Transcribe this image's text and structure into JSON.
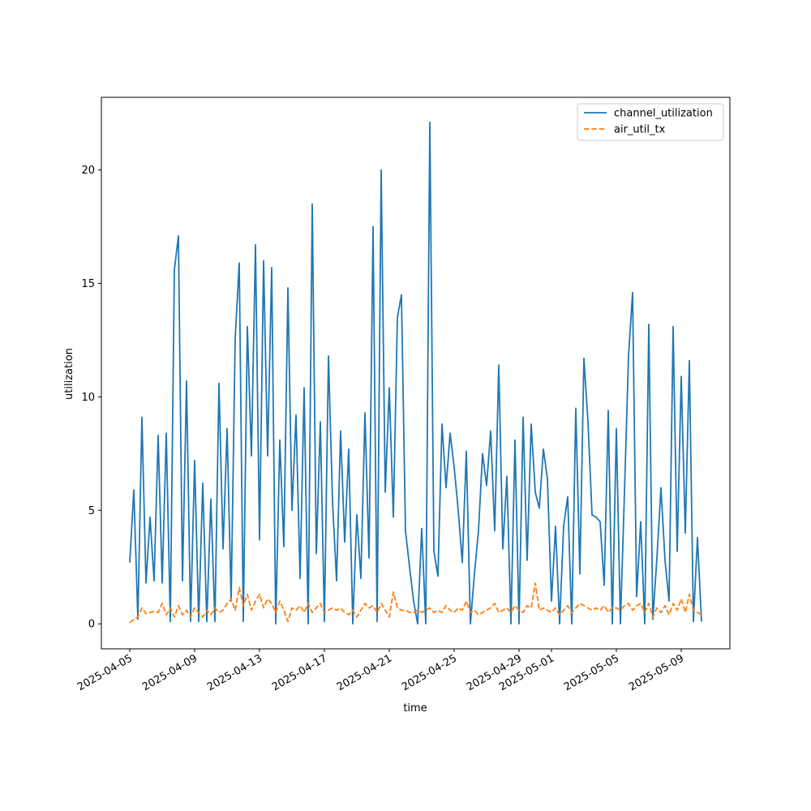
{
  "chart_data": {
    "type": "line",
    "xlabel": "time",
    "ylabel": "utilization",
    "x": [
      "2025-04-05 00:00",
      "2025-04-05 06:00",
      "2025-04-05 12:00",
      "2025-04-05 18:00",
      "2025-04-06 00:00",
      "2025-04-06 06:00",
      "2025-04-06 12:00",
      "2025-04-06 18:00",
      "2025-04-07 00:00",
      "2025-04-07 06:00",
      "2025-04-07 12:00",
      "2025-04-07 18:00",
      "2025-04-08 00:00",
      "2025-04-08 06:00",
      "2025-04-08 12:00",
      "2025-04-08 18:00",
      "2025-04-09 00:00",
      "2025-04-09 06:00",
      "2025-04-09 12:00",
      "2025-04-09 18:00",
      "2025-04-10 00:00",
      "2025-04-10 06:00",
      "2025-04-10 12:00",
      "2025-04-10 18:00",
      "2025-04-11 00:00",
      "2025-04-11 06:00",
      "2025-04-11 12:00",
      "2025-04-11 18:00",
      "2025-04-12 00:00",
      "2025-04-12 06:00",
      "2025-04-12 12:00",
      "2025-04-12 18:00",
      "2025-04-13 00:00",
      "2025-04-13 06:00",
      "2025-04-13 12:00",
      "2025-04-13 18:00",
      "2025-04-14 00:00",
      "2025-04-14 06:00",
      "2025-04-14 12:00",
      "2025-04-14 18:00",
      "2025-04-15 00:00",
      "2025-04-15 06:00",
      "2025-04-15 12:00",
      "2025-04-15 18:00",
      "2025-04-16 00:00",
      "2025-04-16 06:00",
      "2025-04-16 12:00",
      "2025-04-16 18:00",
      "2025-04-17 00:00",
      "2025-04-17 06:00",
      "2025-04-17 12:00",
      "2025-04-17 18:00",
      "2025-04-18 00:00",
      "2025-04-18 06:00",
      "2025-04-18 12:00",
      "2025-04-18 18:00",
      "2025-04-19 00:00",
      "2025-04-19 06:00",
      "2025-04-19 12:00",
      "2025-04-19 18:00",
      "2025-04-20 00:00",
      "2025-04-20 06:00",
      "2025-04-20 12:00",
      "2025-04-20 18:00",
      "2025-04-21 00:00",
      "2025-04-21 06:00",
      "2025-04-21 12:00",
      "2025-04-21 18:00",
      "2025-04-22 00:00",
      "2025-04-22 06:00",
      "2025-04-22 12:00",
      "2025-04-22 18:00",
      "2025-04-23 00:00",
      "2025-04-23 06:00",
      "2025-04-23 12:00",
      "2025-04-23 18:00",
      "2025-04-24 00:00",
      "2025-04-24 06:00",
      "2025-04-24 12:00",
      "2025-04-24 18:00",
      "2025-04-25 00:00",
      "2025-04-25 06:00",
      "2025-04-25 12:00",
      "2025-04-25 18:00",
      "2025-04-26 00:00",
      "2025-04-26 06:00",
      "2025-04-26 12:00",
      "2025-04-26 18:00",
      "2025-04-27 00:00",
      "2025-04-27 06:00",
      "2025-04-27 12:00",
      "2025-04-27 18:00",
      "2025-04-28 00:00",
      "2025-04-28 06:00",
      "2025-04-28 12:00",
      "2025-04-28 18:00",
      "2025-04-29 00:00",
      "2025-04-29 06:00",
      "2025-04-29 12:00",
      "2025-04-29 18:00",
      "2025-04-30 00:00",
      "2025-04-30 06:00",
      "2025-04-30 12:00",
      "2025-04-30 18:00",
      "2025-05-01 00:00",
      "2025-05-01 06:00",
      "2025-05-01 12:00",
      "2025-05-01 18:00",
      "2025-05-02 00:00",
      "2025-05-02 06:00",
      "2025-05-02 12:00",
      "2025-05-02 18:00",
      "2025-05-03 00:00",
      "2025-05-03 06:00",
      "2025-05-03 12:00",
      "2025-05-03 18:00",
      "2025-05-04 00:00",
      "2025-05-04 06:00",
      "2025-05-04 12:00",
      "2025-05-04 18:00",
      "2025-05-05 00:00",
      "2025-05-05 06:00",
      "2025-05-05 12:00",
      "2025-05-05 18:00",
      "2025-05-06 00:00",
      "2025-05-06 06:00",
      "2025-05-06 12:00",
      "2025-05-06 18:00",
      "2025-05-07 00:00",
      "2025-05-07 06:00",
      "2025-05-07 12:00",
      "2025-05-07 18:00",
      "2025-05-08 00:00",
      "2025-05-08 06:00",
      "2025-05-08 12:00",
      "2025-05-08 18:00",
      "2025-05-09 00:00",
      "2025-05-09 06:00",
      "2025-05-09 12:00",
      "2025-05-09 18:00",
      "2025-05-10 00:00",
      "2025-05-10 06:00"
    ],
    "series": [
      {
        "name": "channel_utilization",
        "color": "#1f77b4",
        "dash": false,
        "values": [
          2.7,
          5.9,
          0.2,
          9.1,
          1.8,
          4.7,
          1.9,
          8.3,
          1.8,
          8.4,
          0.1,
          15.6,
          17.1,
          1.9,
          10.7,
          0.1,
          7.2,
          0.1,
          6.2,
          0.1,
          5.5,
          0.1,
          10.6,
          3.3,
          8.6,
          1.0,
          12.6,
          15.9,
          0.1,
          13.1,
          7.4,
          16.7,
          3.7,
          16.0,
          7.4,
          15.7,
          0.0,
          8.1,
          3.4,
          14.8,
          5.0,
          9.2,
          2.0,
          10.4,
          0.0,
          18.5,
          3.1,
          8.9,
          0.1,
          11.8,
          5.4,
          1.9,
          8.5,
          3.6,
          7.7,
          0.0,
          4.8,
          2.0,
          9.3,
          2.9,
          17.5,
          0.1,
          20.0,
          5.8,
          10.4,
          4.7,
          13.5,
          14.5,
          4.1,
          2.5,
          1.0,
          0.0,
          4.2,
          0.0,
          22.1,
          3.2,
          2.1,
          8.8,
          6.0,
          8.4,
          6.9,
          5.0,
          2.7,
          7.6,
          0.0,
          2.2,
          4.1,
          7.5,
          6.1,
          8.5,
          4.1,
          11.4,
          3.3,
          6.5,
          0.0,
          8.1,
          0.0,
          9.1,
          2.8,
          8.8,
          5.8,
          5.1,
          7.7,
          6.4,
          1.0,
          4.3,
          0.0,
          4.3,
          5.6,
          0.0,
          9.5,
          2.2,
          11.7,
          8.9,
          4.8,
          4.7,
          4.5,
          1.7,
          9.4,
          0.0,
          8.6,
          0.0,
          5.8,
          11.8,
          14.6,
          1.2,
          4.5,
          0.0,
          13.2,
          0.2,
          2.9,
          6.0,
          2.8,
          1.0,
          13.1,
          3.2,
          10.9,
          4.0,
          11.6,
          0.1,
          3.8,
          0.1
        ]
      },
      {
        "name": "air_util_tx",
        "color": "#ff7f0e",
        "dash": true,
        "values": [
          0.05,
          0.2,
          0.3,
          0.7,
          0.45,
          0.5,
          0.55,
          0.5,
          0.9,
          0.4,
          0.7,
          0.3,
          0.8,
          0.4,
          0.6,
          0.3,
          0.7,
          0.5,
          0.3,
          0.6,
          0.4,
          0.7,
          0.5,
          0.6,
          0.9,
          1.1,
          0.6,
          1.6,
          0.8,
          1.3,
          0.6,
          1.0,
          1.3,
          0.7,
          1.1,
          0.9,
          0.5,
          1.0,
          0.6,
          0.1,
          0.7,
          0.6,
          0.8,
          0.5,
          0.9,
          0.5,
          0.7,
          0.9,
          0.5,
          0.6,
          0.7,
          0.6,
          0.7,
          0.5,
          0.4,
          0.6,
          0.3,
          0.6,
          0.9,
          0.7,
          0.8,
          0.5,
          0.9,
          0.6,
          0.3,
          1.4,
          0.7,
          0.6,
          0.6,
          0.5,
          0.5,
          0.6,
          0.5,
          0.6,
          0.7,
          0.5,
          0.6,
          0.5,
          0.8,
          0.6,
          0.5,
          0.7,
          0.6,
          1.0,
          0.5,
          0.6,
          0.4,
          0.5,
          0.6,
          0.7,
          0.9,
          0.5,
          0.6,
          0.7,
          0.5,
          0.8,
          0.6,
          0.5,
          0.8,
          0.7,
          1.8,
          0.6,
          0.7,
          0.6,
          0.5,
          0.7,
          0.4,
          0.6,
          0.8,
          0.5,
          0.7,
          0.9,
          0.8,
          0.7,
          0.6,
          0.7,
          0.6,
          0.8,
          0.5,
          0.7,
          0.7,
          0.6,
          0.8,
          0.9,
          0.6,
          0.8,
          0.9,
          0.5,
          0.9,
          0.3,
          0.7,
          0.5,
          0.8,
          0.4,
          0.9,
          0.6,
          1.1,
          0.5,
          1.3,
          0.6,
          0.5,
          0.4
        ]
      }
    ],
    "xlim": [
      "2025-04-03 06:00",
      "2025-05-12 00:00"
    ],
    "xticks": [
      "2025-04-05",
      "2025-04-09",
      "2025-04-13",
      "2025-04-17",
      "2025-04-21",
      "2025-04-25",
      "2025-04-29",
      "2025-05-01",
      "2025-05-05",
      "2025-05-09"
    ],
    "ylim": [
      -1.1,
      23.2
    ],
    "yticks": [
      0,
      5,
      10,
      15,
      20
    ],
    "grid": false,
    "legend": "upper right"
  }
}
